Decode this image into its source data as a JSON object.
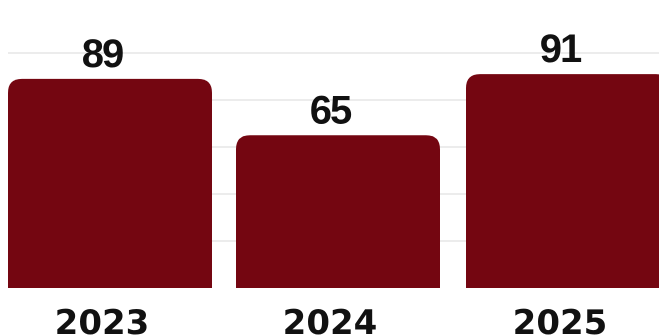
{
  "chart_data": {
    "type": "bar",
    "categories": [
      "2023",
      "2024",
      "2025"
    ],
    "values": [
      89,
      65,
      91
    ],
    "title": "",
    "xlabel": "",
    "ylabel": "",
    "ylim": [
      0,
      100
    ],
    "grid": true,
    "legend": "none",
    "colors": {
      "bar": "#740611",
      "text": "#111111",
      "grid": "#d9d9d9"
    }
  }
}
